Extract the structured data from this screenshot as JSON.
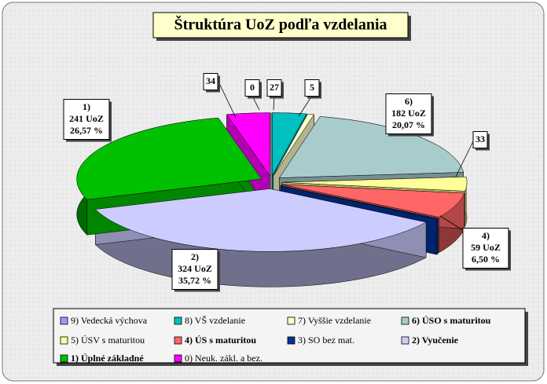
{
  "chart_data": {
    "type": "pie",
    "title": "Štruktúra UoZ podľa vzdelania",
    "categories": [
      "9) Vedecká výchova",
      "8) VŠ  vzdelanie",
      "7) Vyššie vzdelanie",
      "6) ÚSO s maturitou",
      "5) ÚSV s maturitou",
      "4) ÚS s maturitou",
      "3) SO bez mat.",
      "2) Vyučenie",
      "1) Úplné základné",
      "0) Neuk. zákl. a bez."
    ],
    "values": [
      0,
      27,
      5,
      182,
      33,
      59,
      2,
      324,
      241,
      34
    ],
    "value_labels": [
      "0",
      "27",
      "5",
      [
        "6)",
        "182 UoZ",
        "20,07 %"
      ],
      "33",
      [
        "4)",
        "59 UoZ",
        "6,50 %"
      ],
      null,
      [
        "2)",
        "324 UoZ",
        "35,72 %"
      ],
      [
        "1)",
        "241 UoZ",
        "26,57 %"
      ],
      "34"
    ],
    "colors": [
      "#9999ff",
      "#00c0c0",
      "#ffffcc",
      "#a8cccc",
      "#ffff99",
      "#ff6666",
      "#003399",
      "#ccccff",
      "#00c000",
      "#ff00ff"
    ],
    "legend": "bottom"
  }
}
